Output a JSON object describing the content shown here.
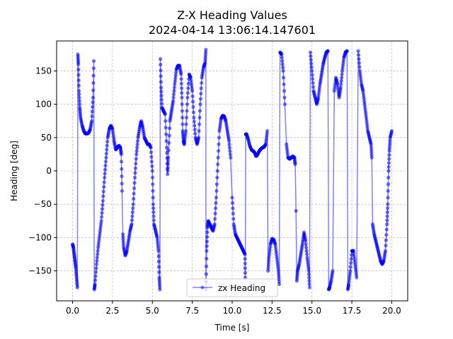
{
  "chart_data": {
    "type": "line",
    "title": "Z-X Heading Values",
    "subtitle": "2024-04-14 13:06:14.147601",
    "xlabel": "Time [s]",
    "ylabel": "Heading [deg]",
    "xlim": [
      -1.0,
      21.0
    ],
    "ylim": [
      -195,
      195
    ],
    "xticks": [
      0.0,
      2.5,
      5.0,
      7.5,
      10.0,
      12.5,
      15.0,
      17.5,
      20.0
    ],
    "xtick_labels": [
      "0.0",
      "2.5",
      "5.0",
      "7.5",
      "10.0",
      "12.5",
      "15.0",
      "17.5",
      "20.0"
    ],
    "yticks": [
      -150,
      -100,
      -50,
      0,
      50,
      100,
      150
    ],
    "ytick_labels": [
      "−150",
      "−100",
      "−50",
      "0",
      "50",
      "100",
      "150"
    ],
    "grid": true,
    "legend_position": "lower center",
    "color": "#0000ff",
    "series": [
      {
        "name": "zx Heading",
        "points": [
          [
            0.0,
            -110
          ],
          [
            0.05,
            -115
          ],
          [
            0.1,
            -125
          ],
          [
            0.15,
            -135
          ],
          [
            0.2,
            -145
          ],
          [
            0.25,
            -160
          ],
          [
            0.3,
            -175
          ],
          [
            0.33,
            175
          ],
          [
            0.36,
            160
          ],
          [
            0.4,
            120
          ],
          [
            0.45,
            95
          ],
          [
            0.5,
            80
          ],
          [
            0.6,
            68
          ],
          [
            0.7,
            60
          ],
          [
            0.8,
            56
          ],
          [
            0.9,
            56
          ],
          [
            1.0,
            57
          ],
          [
            1.1,
            62
          ],
          [
            1.2,
            75
          ],
          [
            1.28,
            110
          ],
          [
            1.33,
            165
          ],
          [
            1.36,
            -178
          ],
          [
            1.4,
            -170
          ],
          [
            1.5,
            -140
          ],
          [
            1.6,
            -115
          ],
          [
            1.7,
            -95
          ],
          [
            1.8,
            -75
          ],
          [
            1.9,
            -45
          ],
          [
            2.0,
            -10
          ],
          [
            2.1,
            20
          ],
          [
            2.2,
            50
          ],
          [
            2.3,
            63
          ],
          [
            2.4,
            68
          ],
          [
            2.5,
            63
          ],
          [
            2.6,
            45
          ],
          [
            2.7,
            32
          ],
          [
            2.8,
            35
          ],
          [
            2.9,
            38
          ],
          [
            3.0,
            35
          ],
          [
            3.05,
            25
          ],
          [
            3.1,
            -30
          ],
          [
            3.15,
            -95
          ],
          [
            3.2,
            -115
          ],
          [
            3.3,
            -127
          ],
          [
            3.4,
            -120
          ],
          [
            3.5,
            -105
          ],
          [
            3.6,
            -90
          ],
          [
            3.7,
            -80
          ],
          [
            3.8,
            -50
          ],
          [
            3.9,
            -10
          ],
          [
            4.0,
            25
          ],
          [
            4.1,
            50
          ],
          [
            4.2,
            65
          ],
          [
            4.3,
            75
          ],
          [
            4.4,
            65
          ],
          [
            4.5,
            50
          ],
          [
            4.6,
            45
          ],
          [
            4.7,
            40
          ],
          [
            4.8,
            40
          ],
          [
            4.9,
            35
          ],
          [
            5.0,
            0
          ],
          [
            5.05,
            -50
          ],
          [
            5.1,
            -80
          ],
          [
            5.2,
            -90
          ],
          [
            5.3,
            -100
          ],
          [
            5.38,
            -120
          ],
          [
            5.43,
            -160
          ],
          [
            5.47,
            -178
          ],
          [
            5.5,
            168
          ],
          [
            5.55,
            125
          ],
          [
            5.6,
            95
          ],
          [
            5.7,
            90
          ],
          [
            5.8,
            85
          ],
          [
            5.9,
            35
          ],
          [
            5.95,
            -5
          ],
          [
            6.0,
            20
          ],
          [
            6.1,
            75
          ],
          [
            6.2,
            90
          ],
          [
            6.3,
            105
          ],
          [
            6.4,
            130
          ],
          [
            6.5,
            152
          ],
          [
            6.6,
            158
          ],
          [
            6.7,
            158
          ],
          [
            6.8,
            145
          ],
          [
            6.85,
            110
          ],
          [
            6.9,
            60
          ],
          [
            6.95,
            45
          ],
          [
            7.0,
            40
          ],
          [
            7.1,
            60
          ],
          [
            7.2,
            110
          ],
          [
            7.3,
            145
          ],
          [
            7.4,
            140
          ],
          [
            7.5,
            120
          ],
          [
            7.6,
            80
          ],
          [
            7.7,
            50
          ],
          [
            7.8,
            40
          ],
          [
            7.9,
            50
          ],
          [
            8.0,
            100
          ],
          [
            8.1,
            140
          ],
          [
            8.2,
            155
          ],
          [
            8.3,
            162
          ],
          [
            8.35,
            182
          ],
          [
            8.36,
            -178
          ],
          [
            8.4,
            -120
          ],
          [
            8.45,
            -85
          ],
          [
            8.5,
            -75
          ],
          [
            8.6,
            -80
          ],
          [
            8.7,
            -85
          ],
          [
            8.8,
            -90
          ],
          [
            8.9,
            -80
          ],
          [
            9.0,
            -40
          ],
          [
            9.1,
            10
          ],
          [
            9.2,
            60
          ],
          [
            9.3,
            78
          ],
          [
            9.4,
            83
          ],
          [
            9.5,
            82
          ],
          [
            9.6,
            75
          ],
          [
            9.7,
            60
          ],
          [
            9.8,
            45
          ],
          [
            9.9,
            20
          ],
          [
            10.0,
            -40
          ],
          [
            10.1,
            -80
          ],
          [
            10.2,
            -95
          ],
          [
            10.3,
            -100
          ],
          [
            10.4,
            -105
          ],
          [
            10.5,
            -110
          ],
          [
            10.6,
            -115
          ],
          [
            10.7,
            -120
          ],
          [
            10.8,
            -125
          ],
          [
            10.82,
            -160
          ],
          [
            10.85,
            55
          ],
          [
            10.9,
            55
          ],
          [
            11.0,
            48
          ],
          [
            11.1,
            38
          ],
          [
            11.2,
            32
          ],
          [
            11.3,
            30
          ],
          [
            11.4,
            28
          ],
          [
            11.5,
            22
          ],
          [
            11.6,
            25
          ],
          [
            11.7,
            30
          ],
          [
            11.8,
            33
          ],
          [
            11.9,
            35
          ],
          [
            12.0,
            36
          ],
          [
            12.1,
            40
          ],
          [
            12.2,
            60
          ],
          [
            12.25,
            -150
          ],
          [
            12.3,
            -130
          ],
          [
            12.4,
            -110
          ],
          [
            12.5,
            -102
          ],
          [
            12.6,
            -103
          ],
          [
            12.7,
            -110
          ],
          [
            12.8,
            -130
          ],
          [
            12.9,
            -150
          ],
          [
            12.95,
            -170
          ],
          [
            13.0,
            178
          ],
          [
            13.1,
            175
          ],
          [
            13.2,
            150
          ],
          [
            13.3,
            100
          ],
          [
            13.4,
            40
          ],
          [
            13.5,
            20
          ],
          [
            13.6,
            18
          ],
          [
            13.7,
            20
          ],
          [
            13.8,
            22
          ],
          [
            13.9,
            20
          ],
          [
            13.95,
            10
          ],
          [
            14.0,
            -60
          ],
          [
            14.05,
            -165
          ],
          [
            14.1,
            -150
          ],
          [
            14.2,
            -140
          ],
          [
            14.3,
            -125
          ],
          [
            14.4,
            -110
          ],
          [
            14.5,
            -92
          ],
          [
            14.6,
            -105
          ],
          [
            14.7,
            -130
          ],
          [
            14.8,
            -150
          ],
          [
            14.85,
            -175
          ],
          [
            14.9,
            178
          ],
          [
            15.0,
            150
          ],
          [
            15.1,
            120
          ],
          [
            15.2,
            110
          ],
          [
            15.3,
            100
          ],
          [
            15.4,
            110
          ],
          [
            15.5,
            130
          ],
          [
            15.6,
            145
          ],
          [
            15.7,
            160
          ],
          [
            15.8,
            170
          ],
          [
            15.9,
            178
          ],
          [
            16.0,
            180
          ],
          [
            16.05,
            -178
          ],
          [
            16.1,
            -175
          ],
          [
            16.2,
            -165
          ],
          [
            16.3,
            -150
          ],
          [
            16.4,
            120
          ],
          [
            16.5,
            140
          ],
          [
            16.6,
            130
          ],
          [
            16.7,
            110
          ],
          [
            16.8,
            125
          ],
          [
            16.9,
            150
          ],
          [
            17.0,
            170
          ],
          [
            17.1,
            178
          ],
          [
            17.2,
            180
          ],
          [
            17.25,
            -178
          ],
          [
            17.3,
            -170
          ],
          [
            17.4,
            -150
          ],
          [
            17.5,
            -120
          ],
          [
            17.6,
            -120
          ],
          [
            17.7,
            -140
          ],
          [
            17.8,
            -160
          ],
          [
            17.9,
            180
          ],
          [
            18.0,
            150
          ],
          [
            18.1,
            130
          ],
          [
            18.2,
            120
          ],
          [
            18.3,
            100
          ],
          [
            18.4,
            80
          ],
          [
            18.5,
            60
          ],
          [
            18.6,
            50
          ],
          [
            18.7,
            40
          ],
          [
            18.75,
            20
          ],
          [
            18.8,
            -80
          ],
          [
            18.9,
            -95
          ],
          [
            19.0,
            -105
          ],
          [
            19.1,
            -115
          ],
          [
            19.2,
            -125
          ],
          [
            19.3,
            -135
          ],
          [
            19.4,
            -140
          ],
          [
            19.5,
            -135
          ],
          [
            19.6,
            -120
          ],
          [
            19.7,
            -80
          ],
          [
            19.75,
            -50
          ],
          [
            19.8,
            0
          ],
          [
            19.85,
            30
          ],
          [
            19.9,
            50
          ],
          [
            20.0,
            60
          ]
        ]
      }
    ]
  }
}
